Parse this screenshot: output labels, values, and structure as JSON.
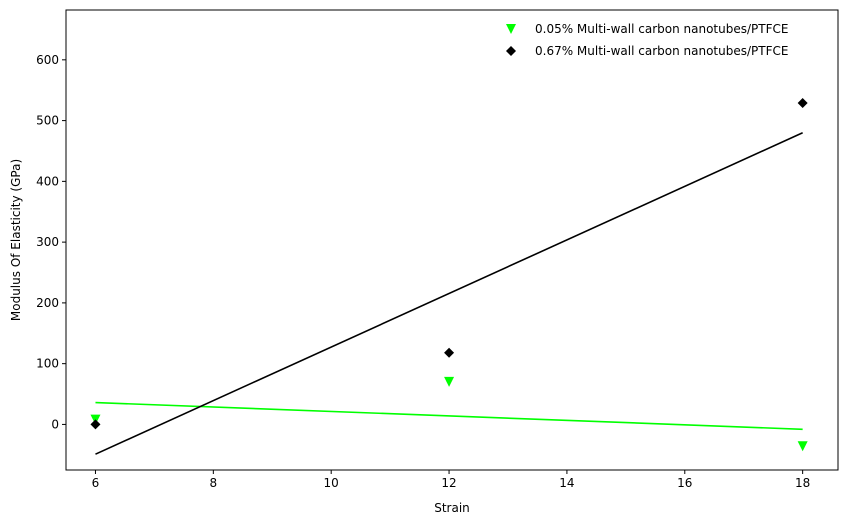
{
  "chart_data": {
    "type": "scatter",
    "title": "",
    "xlabel": "Strain",
    "ylabel": "Modulus Of Elasticity (GPa)",
    "xlim": [
      5.5,
      18.6
    ],
    "ylim": [
      -75,
      682
    ],
    "xticks": [
      6,
      8,
      10,
      12,
      14,
      16,
      18
    ],
    "yticks": [
      0,
      100,
      200,
      300,
      400,
      500,
      600
    ],
    "grid": false,
    "legend_position": "top-right",
    "series": [
      {
        "name": "0.05% Multi-wall carbon nanotubes/PTFCE",
        "color": "#00ff00",
        "marker": "triangle-down",
        "x": [
          6,
          12,
          18
        ],
        "y": [
          8,
          70,
          -36
        ],
        "trendline": {
          "x": [
            6,
            18
          ],
          "y": [
            36,
            -8
          ]
        }
      },
      {
        "name": "0.67% Multi-wall carbon nanotubes/PTFCE",
        "color": "#000000",
        "marker": "diamond",
        "x": [
          6,
          12,
          18
        ],
        "y": [
          0,
          118,
          529
        ],
        "trendline": {
          "x": [
            6,
            18
          ],
          "y": [
            -49,
            480
          ]
        }
      }
    ]
  }
}
